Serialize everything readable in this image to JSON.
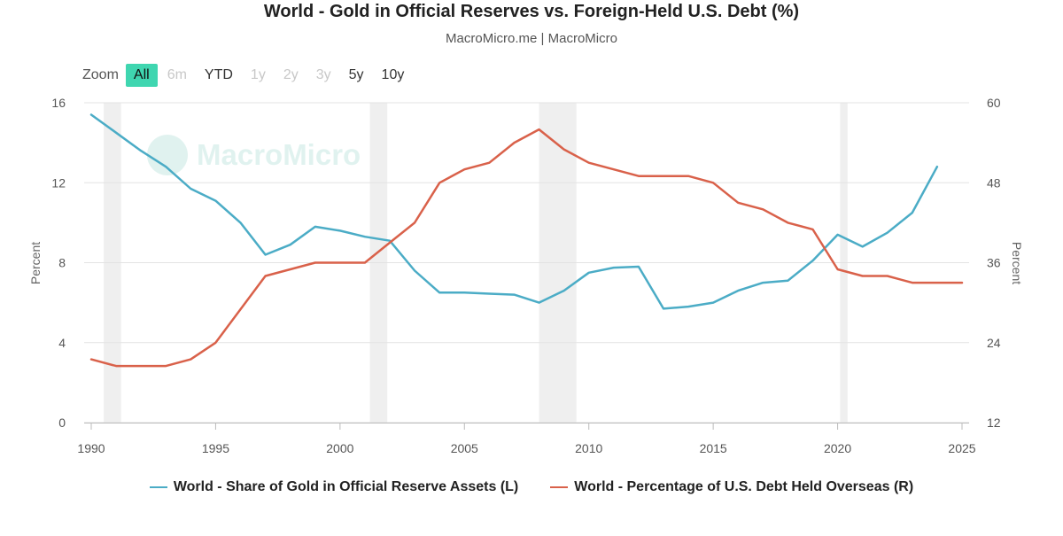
{
  "header": {
    "title": "World - Gold in Official Reserves vs. Foreign-Held U.S. Debt (%)",
    "subtitle": "MacroMicro.me | MacroMicro"
  },
  "watermark_text": "MacroMicro",
  "zoom": {
    "label": "Zoom",
    "options": [
      {
        "label": "All",
        "state": "active"
      },
      {
        "label": "6m",
        "state": "disabled"
      },
      {
        "label": "YTD",
        "state": "enabled"
      },
      {
        "label": "1y",
        "state": "disabled"
      },
      {
        "label": "2y",
        "state": "disabled"
      },
      {
        "label": "3y",
        "state": "disabled"
      },
      {
        "label": "5y",
        "state": "enabled"
      },
      {
        "label": "10y",
        "state": "enabled"
      }
    ]
  },
  "chart_data": {
    "type": "line",
    "xlim": [
      1990,
      2025
    ],
    "x_ticks": [
      1990,
      1995,
      2000,
      2005,
      2010,
      2015,
      2020,
      2025
    ],
    "y_left": {
      "label": "Percent",
      "lim": [
        0,
        16
      ],
      "ticks": [
        0,
        4,
        8,
        12,
        16
      ]
    },
    "y_right": {
      "label": "Percent",
      "lim": [
        12,
        60
      ],
      "ticks": [
        12,
        24,
        36,
        48,
        60
      ]
    },
    "grid": true,
    "legend_position": "bottom",
    "recession_bands": [
      [
        1990.5,
        1991.2
      ],
      [
        2001.2,
        2001.9
      ],
      [
        2008.0,
        2009.5
      ],
      [
        2020.1,
        2020.4
      ]
    ],
    "series": [
      {
        "name": "World - Share of Gold in Official Reserve Assets (L)",
        "axis": "left",
        "color": "#4bacc6",
        "points": [
          [
            1990,
            15.4
          ],
          [
            1991,
            14.5
          ],
          [
            1992,
            13.6
          ],
          [
            1993,
            12.8
          ],
          [
            1994,
            11.7
          ],
          [
            1995,
            11.1
          ],
          [
            1996,
            10.0
          ],
          [
            1997,
            8.4
          ],
          [
            1998,
            8.9
          ],
          [
            1999,
            9.8
          ],
          [
            2000,
            9.6
          ],
          [
            2001,
            9.3
          ],
          [
            2002,
            9.1
          ],
          [
            2003,
            7.6
          ],
          [
            2004,
            6.5
          ],
          [
            2005,
            6.5
          ],
          [
            2006,
            6.45
          ],
          [
            2007,
            6.4
          ],
          [
            2008,
            6.0
          ],
          [
            2009,
            6.6
          ],
          [
            2010,
            7.5
          ],
          [
            2011,
            7.75
          ],
          [
            2012,
            7.8
          ],
          [
            2013,
            5.7
          ],
          [
            2014,
            5.8
          ],
          [
            2015,
            6.0
          ],
          [
            2016,
            6.6
          ],
          [
            2017,
            7.0
          ],
          [
            2018,
            7.1
          ],
          [
            2019,
            8.1
          ],
          [
            2020,
            9.4
          ],
          [
            2021,
            8.8
          ],
          [
            2022,
            9.5
          ],
          [
            2023,
            10.5
          ],
          [
            2024,
            12.8
          ]
        ]
      },
      {
        "name": "World - Percentage of U.S. Debt Held Overseas (R)",
        "axis": "right",
        "color": "#d9614a",
        "points": [
          [
            1990,
            21.5
          ],
          [
            1991,
            20.5
          ],
          [
            1992,
            20.5
          ],
          [
            1993,
            20.5
          ],
          [
            1994,
            21.5
          ],
          [
            1995,
            24.0
          ],
          [
            1996,
            29.0
          ],
          [
            1997,
            34.0
          ],
          [
            1998,
            35.0
          ],
          [
            1999,
            36.0
          ],
          [
            2000,
            36.0
          ],
          [
            2001,
            36.0
          ],
          [
            2002,
            39.0
          ],
          [
            2003,
            42.0
          ],
          [
            2004,
            48.0
          ],
          [
            2005,
            50.0
          ],
          [
            2006,
            51.0
          ],
          [
            2007,
            54.0
          ],
          [
            2008,
            56.0
          ],
          [
            2009,
            53.0
          ],
          [
            2010,
            51.0
          ],
          [
            2011,
            50.0
          ],
          [
            2012,
            49.0
          ],
          [
            2013,
            49.0
          ],
          [
            2014,
            49.0
          ],
          [
            2015,
            48.0
          ],
          [
            2016,
            45.0
          ],
          [
            2017,
            44.0
          ],
          [
            2018,
            42.0
          ],
          [
            2019,
            41.0
          ],
          [
            2020,
            35.0
          ],
          [
            2021,
            34.0
          ],
          [
            2022,
            34.0
          ],
          [
            2023,
            33.0
          ],
          [
            2024,
            33.0
          ],
          [
            2025,
            33.0
          ]
        ]
      }
    ]
  }
}
